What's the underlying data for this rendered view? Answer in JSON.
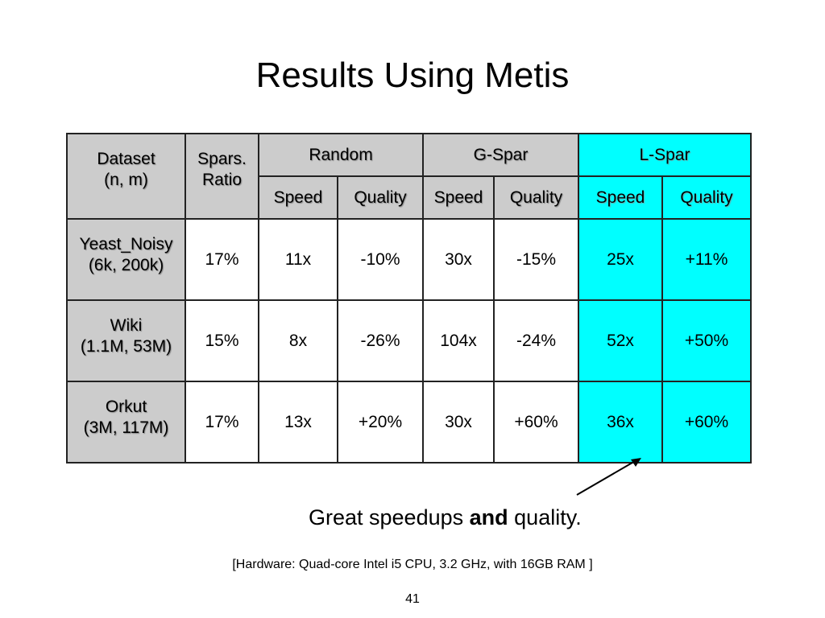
{
  "slide": {
    "title": "Results Using Metis",
    "page_number": "41"
  },
  "table": {
    "headers": {
      "dataset_line1": "Dataset",
      "dataset_line2": "(n, m)",
      "ratio_line1": "Spars.",
      "ratio_line2": "Ratio",
      "groups": [
        "Random",
        "G-Spar",
        "L-Spar"
      ],
      "sub": [
        "Speed",
        "Quality",
        "Speed",
        "Quality",
        "Speed",
        "Quality"
      ]
    },
    "rows": [
      {
        "name": "Yeast_Noisy",
        "size": "(6k, 200k)",
        "ratio": "17%",
        "cells": [
          "11x",
          "-10%",
          "30x",
          "-15%",
          "25x",
          "+11%"
        ]
      },
      {
        "name": "Wiki",
        "size": "(1.1M, 53M)",
        "ratio": "15%",
        "cells": [
          "8x",
          "-26%",
          "104x",
          "-24%",
          "52x",
          "+50%"
        ]
      },
      {
        "name": "Orkut",
        "size": "(3M, 117M)",
        "ratio": "17%",
        "cells": [
          "13x",
          "+20%",
          "30x",
          "+60%",
          "36x",
          "+60%"
        ]
      }
    ],
    "highlight_color": "#00ffff",
    "header_color": "#cccccc"
  },
  "caption": {
    "before": "Great speedups ",
    "bold": "and",
    "after": " quality."
  },
  "footnote": "[Hardware: Quad-core Intel i5 CPU, 3.2 GHz, with 16GB RAM ]"
}
